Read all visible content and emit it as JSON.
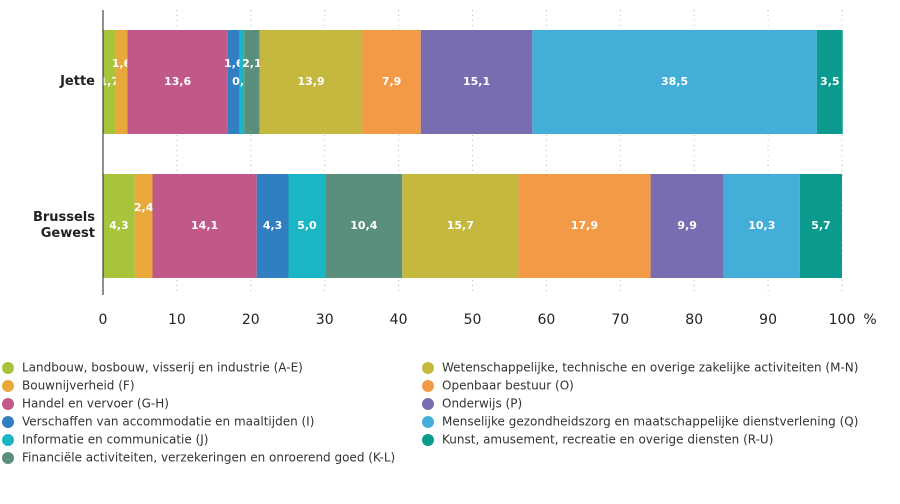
{
  "chart_data": {
    "type": "stacked-bar",
    "orientation": "horizontal",
    "categories": [
      "Jette",
      "Brussels Gewest"
    ],
    "x_label": "%",
    "xlim": [
      0,
      100
    ],
    "xticks": [
      0,
      10,
      20,
      30,
      40,
      50,
      60,
      70,
      80,
      90,
      100
    ],
    "grid": true,
    "series": [
      {
        "name": "Landbouw, bosbouw, visserij en industrie (A-E)",
        "color": "#a8c43a",
        "values": [
          1.7,
          4.3
        ],
        "value_labels": [
          "1,7",
          "4,3"
        ]
      },
      {
        "name": "Bouwnijverheid (F)",
        "color": "#e8a93a",
        "values": [
          1.6,
          2.4
        ],
        "value_labels": [
          "1,6",
          "2,4"
        ]
      },
      {
        "name": "Handel en vervoer (G-H)",
        "color": "#c0598a",
        "values": [
          13.6,
          14.1
        ],
        "value_labels": [
          "13,6",
          "14,1"
        ]
      },
      {
        "name": "Verschaffen van accommodatie en maaltijden (I)",
        "color": "#2f7fc1",
        "values": [
          1.6,
          4.3
        ],
        "value_labels": [
          "1,6",
          "4,3"
        ]
      },
      {
        "name": "Informatie en communicatie (J)",
        "color": "#1ab6c4",
        "values": [
          0.6,
          5.0
        ],
        "value_labels": [
          "0,6",
          "5,0"
        ]
      },
      {
        "name": "Financiële activiteiten, verzekeringen en onroerend goed (K-L)",
        "color": "#5a8f7b",
        "values": [
          2.1,
          10.4
        ],
        "value_labels": [
          "2,1",
          "10,4"
        ]
      },
      {
        "name": "Wetenschappelijke, technische en overige zakelijke activiteiten (M-N)",
        "color": "#c4b83e",
        "values": [
          13.9,
          15.7
        ],
        "value_labels": [
          "13,9",
          "15,7"
        ]
      },
      {
        "name": "Openbaar bestuur (O)",
        "color": "#f39a46",
        "values": [
          7.9,
          17.9
        ],
        "value_labels": [
          "7,9",
          "17,9"
        ]
      },
      {
        "name": "Onderwijs (P)",
        "color": "#7a6cb0",
        "values": [
          15.1,
          9.9
        ],
        "value_labels": [
          "15,1",
          "9,9"
        ]
      },
      {
        "name": "Menselijke gezondheidszorg en maatschappelijke dienstverlening (Q)",
        "color": "#43aed8",
        "values": [
          38.5,
          10.3
        ],
        "value_labels": [
          "38,5",
          "10,3"
        ]
      },
      {
        "name": "Kunst, amusement, recreatie en overige diensten (R-U)",
        "color": "#0a9b8e",
        "values": [
          3.5,
          5.7
        ],
        "value_labels": [
          "3,5",
          "5,7"
        ]
      }
    ]
  }
}
